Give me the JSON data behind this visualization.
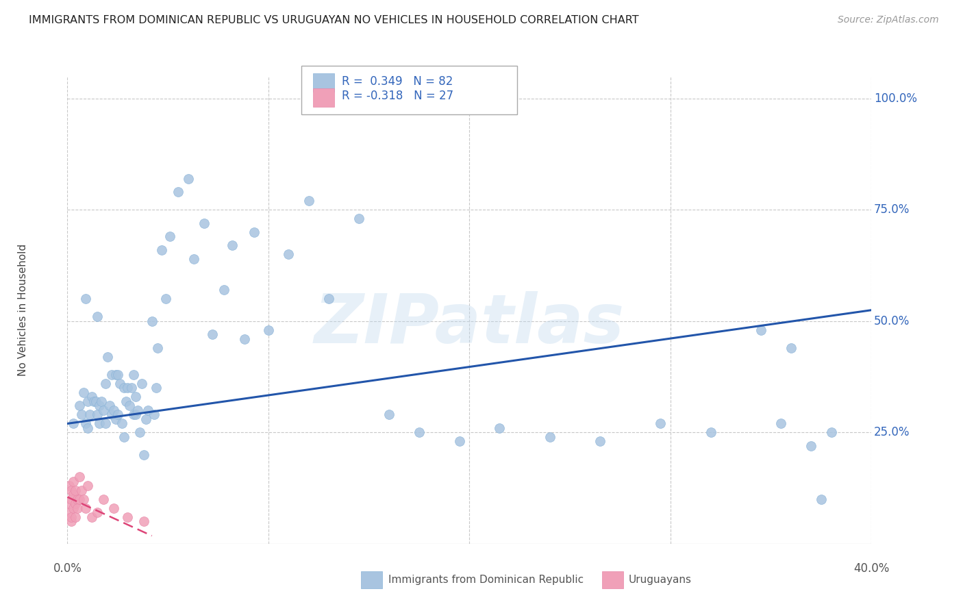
{
  "title": "IMMIGRANTS FROM DOMINICAN REPUBLIC VS URUGUAYAN NO VEHICLES IN HOUSEHOLD CORRELATION CHART",
  "source": "Source: ZipAtlas.com",
  "ylabel": "No Vehicles in Household",
  "xlim": [
    0.0,
    0.4
  ],
  "ylim": [
    0.0,
    1.05
  ],
  "xtick_positions": [
    0.0,
    0.1,
    0.2,
    0.3,
    0.4
  ],
  "ytick_positions": [
    0.25,
    0.5,
    0.75,
    1.0
  ],
  "ytick_top": 1.0,
  "grid_color": "#c8c8c8",
  "blue_color": "#a8c4e0",
  "pink_color": "#f0a0b8",
  "blue_line_color": "#2255aa",
  "pink_line_color": "#dd4477",
  "legend_label_blue": "Immigrants from Dominican Republic",
  "legend_label_pink": "Uruguayans",
  "watermark": "ZIPatlas",
  "blue_line_x": [
    0.0,
    0.4
  ],
  "blue_line_y": [
    0.27,
    0.525
  ],
  "pink_line_x": [
    0.0,
    0.042
  ],
  "pink_line_y": [
    0.105,
    0.018
  ],
  "blue_scatter_x": [
    0.003,
    0.006,
    0.007,
    0.008,
    0.009,
    0.009,
    0.01,
    0.01,
    0.011,
    0.012,
    0.013,
    0.014,
    0.015,
    0.015,
    0.016,
    0.016,
    0.017,
    0.018,
    0.019,
    0.019,
    0.02,
    0.021,
    0.022,
    0.022,
    0.023,
    0.024,
    0.024,
    0.025,
    0.025,
    0.026,
    0.027,
    0.028,
    0.028,
    0.029,
    0.03,
    0.031,
    0.032,
    0.033,
    0.033,
    0.034,
    0.034,
    0.035,
    0.036,
    0.037,
    0.038,
    0.039,
    0.04,
    0.042,
    0.043,
    0.044,
    0.045,
    0.047,
    0.049,
    0.051,
    0.055,
    0.06,
    0.063,
    0.068,
    0.072,
    0.078,
    0.082,
    0.088,
    0.093,
    0.1,
    0.11,
    0.12,
    0.13,
    0.145,
    0.16,
    0.175,
    0.195,
    0.215,
    0.24,
    0.265,
    0.295,
    0.32,
    0.345,
    0.355,
    0.36,
    0.37,
    0.375,
    0.38
  ],
  "blue_scatter_y": [
    0.27,
    0.31,
    0.29,
    0.34,
    0.27,
    0.55,
    0.32,
    0.26,
    0.29,
    0.33,
    0.32,
    0.32,
    0.29,
    0.51,
    0.27,
    0.31,
    0.32,
    0.3,
    0.27,
    0.36,
    0.42,
    0.31,
    0.38,
    0.29,
    0.3,
    0.38,
    0.28,
    0.38,
    0.29,
    0.36,
    0.27,
    0.24,
    0.35,
    0.32,
    0.35,
    0.31,
    0.35,
    0.38,
    0.29,
    0.29,
    0.33,
    0.3,
    0.25,
    0.36,
    0.2,
    0.28,
    0.3,
    0.5,
    0.29,
    0.35,
    0.44,
    0.66,
    0.55,
    0.69,
    0.79,
    0.82,
    0.64,
    0.72,
    0.47,
    0.57,
    0.67,
    0.46,
    0.7,
    0.48,
    0.65,
    0.77,
    0.55,
    0.73,
    0.29,
    0.25,
    0.23,
    0.26,
    0.24,
    0.23,
    0.27,
    0.25,
    0.48,
    0.27,
    0.44,
    0.22,
    0.1,
    0.25
  ],
  "pink_scatter_x": [
    0.001,
    0.001,
    0.001,
    0.002,
    0.002,
    0.002,
    0.002,
    0.003,
    0.003,
    0.003,
    0.004,
    0.004,
    0.004,
    0.005,
    0.005,
    0.006,
    0.006,
    0.007,
    0.008,
    0.009,
    0.01,
    0.012,
    0.015,
    0.018,
    0.023,
    0.03,
    0.038
  ],
  "pink_scatter_y": [
    0.07,
    0.09,
    0.13,
    0.1,
    0.05,
    0.12,
    0.06,
    0.08,
    0.11,
    0.14,
    0.09,
    0.12,
    0.06,
    0.1,
    0.08,
    0.1,
    0.15,
    0.12,
    0.1,
    0.08,
    0.13,
    0.06,
    0.07,
    0.1,
    0.08,
    0.06,
    0.05
  ]
}
